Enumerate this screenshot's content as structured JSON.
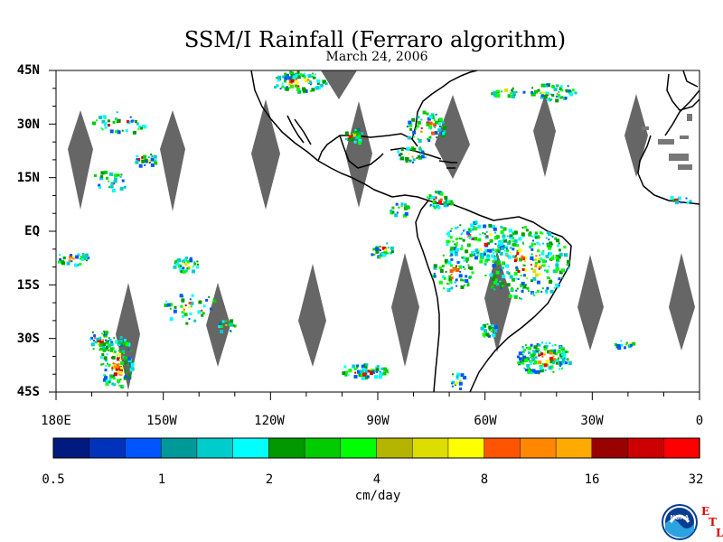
{
  "title": "SSM/I Rainfall (Ferraro algorithm)",
  "subtitle": "March 24, 2006",
  "y_ticks": [
    "45N",
    "30N",
    "15N",
    "EQ",
    "15S",
    "30S",
    "45S"
  ],
  "x_ticks": [
    "180E",
    "150W",
    "120W",
    "90W",
    "60W",
    "30W",
    "0"
  ],
  "map_extent": {
    "lon": [
      -180,
      0
    ],
    "lat": [
      -45,
      45
    ]
  },
  "swath_gap_color": "#666666",
  "colorbar": {
    "colors": [
      "#001a80",
      "#0033bb",
      "#0055ff",
      "#00999a",
      "#00cccc",
      "#00ffff",
      "#009900",
      "#00cc00",
      "#00ff00",
      "#b4b400",
      "#dddd00",
      "#ffff00",
      "#ff5500",
      "#ff8800",
      "#ffaa00",
      "#990000",
      "#cc0000",
      "#ff0000"
    ],
    "tick_labels": [
      "0.5",
      "1",
      "2",
      "4",
      "8",
      "16",
      "32"
    ],
    "units": "cm/day"
  },
  "logo": {
    "text": "NOAA",
    "etl": [
      "E",
      "T",
      "L"
    ]
  }
}
